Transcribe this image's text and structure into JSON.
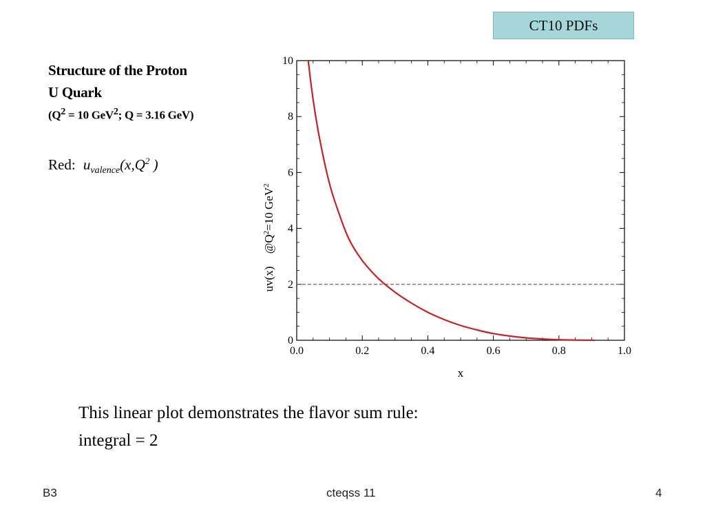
{
  "badge": "CT10 PDFs",
  "heading": {
    "line1": "Structure of the Proton",
    "line2": "U Quark",
    "line3_open": "(Q",
    "line3_sup1": "2",
    "line3_mid": " = 10 GeV",
    "line3_sup2": "2",
    "line3_end": "; Q = 3.16 GeV)"
  },
  "legend": {
    "prefix": "Red:",
    "u": "u",
    "sub": "valence",
    "args_open": "(x,Q",
    "args_sup": "2",
    "args_close": " )"
  },
  "caption": {
    "line1": "This linear plot demonstrates the flavor sum rule:",
    "line2": "integral = 2"
  },
  "footer": {
    "left": "B3",
    "center": "cteqss 11",
    "right": "4"
  },
  "chart_data": {
    "type": "line",
    "xlabel": "x",
    "ylabel_main": "uv(x)",
    "ylabel_q": "@Q",
    "ylabel_q_sup": "2",
    "ylabel_q_rest": "=10 GeV",
    "ylabel_q_sup2": "2",
    "xlim": [
      0.0,
      1.0
    ],
    "ylim": [
      0,
      10
    ],
    "x_ticks": [
      "0.0",
      "0.2",
      "0.4",
      "0.6",
      "0.8",
      "1.0"
    ],
    "y_ticks": [
      "0",
      "2",
      "4",
      "6",
      "8",
      "10"
    ],
    "grid": false,
    "reference_line": {
      "y": 2,
      "style": "dashed",
      "color": "#555555"
    },
    "series": [
      {
        "color": "#cc1f1f",
        "x": [
          0.035,
          0.05,
          0.07,
          0.1,
          0.13,
          0.16,
          0.2,
          0.25,
          0.3,
          0.35,
          0.4,
          0.45,
          0.5,
          0.55,
          0.6,
          0.65,
          0.7,
          0.75,
          0.8,
          0.85,
          0.9,
          0.91
        ],
        "y": [
          10.0,
          8.6,
          7.2,
          5.6,
          4.5,
          3.6,
          2.85,
          2.2,
          1.72,
          1.33,
          1.0,
          0.74,
          0.53,
          0.37,
          0.24,
          0.15,
          0.085,
          0.045,
          0.02,
          0.008,
          0.002,
          0.001
        ]
      }
    ]
  }
}
